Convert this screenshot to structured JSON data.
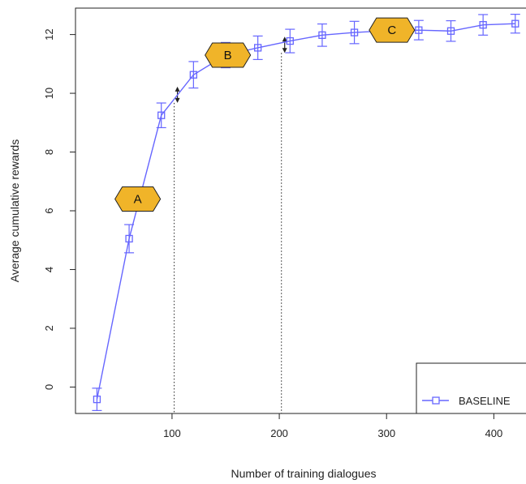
{
  "chart_data": {
    "type": "line",
    "title": "",
    "xlabel": "Number of training dialogues",
    "ylabel": "Average cumulative rewards",
    "xlim": [
      10,
      430
    ],
    "ylim": [
      -0.9,
      12.9
    ],
    "xticks": [
      100,
      200,
      300,
      400
    ],
    "yticks": [
      0,
      2,
      4,
      6,
      8,
      10,
      12
    ],
    "grid": false,
    "legend_position": "bottom-right",
    "colors": {
      "series": "#6666ff",
      "badge_fill": "#f0b429",
      "badge_stroke": "#222222"
    },
    "series": [
      {
        "name": "BASELINE",
        "marker": "open-square",
        "x": [
          30,
          60,
          90,
          120,
          150,
          180,
          210,
          240,
          270,
          300,
          330,
          360,
          390,
          420
        ],
        "y": [
          -0.42,
          5.05,
          9.25,
          10.63,
          11.3,
          11.55,
          11.78,
          11.98,
          12.07,
          12.13,
          12.15,
          12.12,
          12.33,
          12.37
        ],
        "err": [
          0.38,
          0.48,
          0.42,
          0.45,
          0.43,
          0.4,
          0.4,
          0.38,
          0.38,
          0.36,
          0.33,
          0.35,
          0.35,
          0.32
        ]
      }
    ],
    "annotations": [
      {
        "label": "A",
        "x": 68,
        "y": 6.4
      },
      {
        "label": "B",
        "x": 152,
        "y": 11.3
      },
      {
        "label": "C",
        "x": 305,
        "y": 12.15
      }
    ],
    "vlines": [
      {
        "x": 102,
        "y_top": 9.95
      },
      {
        "x": 202,
        "y_top": 11.65
      }
    ]
  }
}
